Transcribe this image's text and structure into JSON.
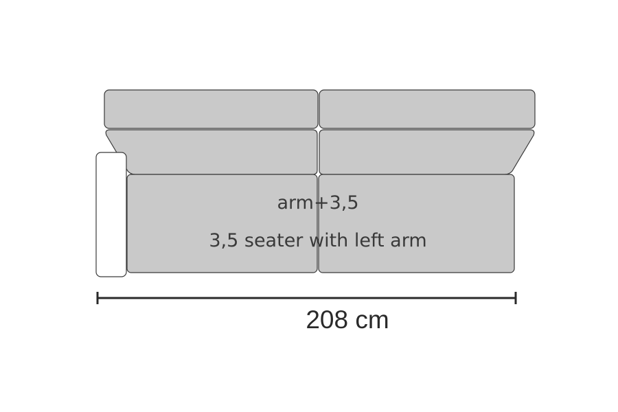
{
  "diagram": {
    "model_code": "arm+3,5",
    "description": "3,5 seater with left arm",
    "width_dimension": "208 cm"
  },
  "colors": {
    "cushion_fill": "#c9c9c9",
    "outline": "#3a3a3a",
    "arm_fill": "#ffffff",
    "dimension_line": "#2a2a2a"
  }
}
